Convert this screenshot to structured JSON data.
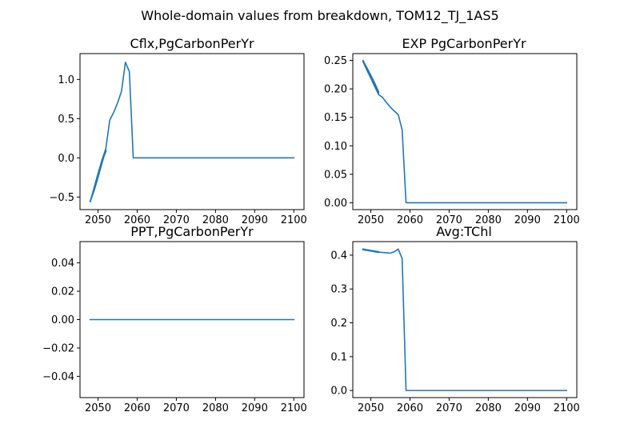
{
  "figure": {
    "suptitle": "Whole-domain values from breakdown, TOM12_TJ_1AS5"
  },
  "style": {
    "series_color": "#1f77b4"
  },
  "chart_data": [
    {
      "type": "line",
      "title": "Cflx,PgCarbonPerYr",
      "xlim": [
        2045.4,
        2102.6
      ],
      "ylim": [
        -0.66,
        1.33
      ],
      "xticks": [
        2050,
        2060,
        2070,
        2080,
        2090,
        2100
      ],
      "xtick_labels": [
        "2050",
        "2060",
        "2070",
        "2080",
        "2090",
        "2100"
      ],
      "yticks": [
        -0.5,
        0.0,
        0.5,
        1.0
      ],
      "ytick_labels": [
        "−0.5",
        "0.0",
        "0.5",
        "1.0"
      ],
      "grid": false,
      "series": [
        {
          "x": [
            2048,
            2049,
            2050,
            2051,
            2052,
            2052,
            2051,
            2050,
            2049,
            2048,
            2049,
            2050,
            2051,
            2052,
            2053,
            2054,
            2055,
            2056,
            2057,
            2058,
            2059,
            2060,
            2070,
            2080,
            2090,
            2100
          ],
          "y": [
            -0.55,
            -0.4,
            -0.22,
            -0.05,
            0.08,
            0.1,
            -0.07,
            -0.25,
            -0.42,
            -0.56,
            -0.38,
            -0.2,
            -0.03,
            0.12,
            0.48,
            0.58,
            0.7,
            0.85,
            1.22,
            1.1,
            0.0,
            0.0,
            0.0,
            0.0,
            0.0,
            0.0
          ]
        }
      ]
    },
    {
      "type": "line",
      "title": "EXP PgCarbonPerYr",
      "xlim": [
        2045.4,
        2102.6
      ],
      "ylim": [
        -0.012,
        0.262
      ],
      "xticks": [
        2050,
        2060,
        2070,
        2080,
        2090,
        2100
      ],
      "xtick_labels": [
        "2050",
        "2060",
        "2070",
        "2080",
        "2090",
        "2100"
      ],
      "yticks": [
        0.0,
        0.05,
        0.1,
        0.15,
        0.2,
        0.25
      ],
      "ytick_labels": [
        "0.00",
        "0.05",
        "0.10",
        "0.15",
        "0.20",
        "0.25"
      ],
      "grid": false,
      "series": [
        {
          "x": [
            2048,
            2049,
            2050,
            2051,
            2052,
            2052,
            2051,
            2050,
            2049,
            2048,
            2049,
            2050,
            2051,
            2052,
            2053,
            2054,
            2055,
            2056,
            2057,
            2058,
            2059,
            2060,
            2070,
            2080,
            2090,
            2100
          ],
          "y": [
            0.25,
            0.237,
            0.224,
            0.21,
            0.195,
            0.19,
            0.205,
            0.22,
            0.234,
            0.248,
            0.233,
            0.219,
            0.204,
            0.19,
            0.185,
            0.176,
            0.168,
            0.161,
            0.155,
            0.128,
            0.0,
            0.0,
            0.0,
            0.0,
            0.0,
            0.0
          ]
        }
      ]
    },
    {
      "type": "line",
      "title": "PPT,PgCarbonPerYr",
      "xlim": [
        2045.4,
        2102.6
      ],
      "ylim": [
        -0.055,
        0.055
      ],
      "xticks": [
        2050,
        2060,
        2070,
        2080,
        2090,
        2100
      ],
      "xtick_labels": [
        "2050",
        "2060",
        "2070",
        "2080",
        "2090",
        "2100"
      ],
      "yticks": [
        -0.04,
        -0.02,
        0.0,
        0.02,
        0.04
      ],
      "ytick_labels": [
        "−0.04",
        "−0.02",
        "0.00",
        "0.02",
        "0.04"
      ],
      "grid": false,
      "series": [
        {
          "x": [
            2048,
            2049,
            2050,
            2051,
            2052,
            2052,
            2051,
            2050,
            2049,
            2048,
            2049,
            2050,
            2051,
            2052,
            2060,
            2070,
            2080,
            2090,
            2100
          ],
          "y": [
            0.0,
            0.0,
            0.0,
            0.0,
            0.0,
            0.0,
            0.0,
            0.0,
            0.0,
            0.0,
            0.0,
            0.0,
            0.0,
            0.0,
            0.0,
            0.0,
            0.0,
            0.0,
            0.0
          ]
        }
      ]
    },
    {
      "type": "line",
      "title": "Avg:TChl",
      "xlim": [
        2045.4,
        2102.6
      ],
      "ylim": [
        -0.021,
        0.44
      ],
      "xticks": [
        2050,
        2060,
        2070,
        2080,
        2090,
        2100
      ],
      "xtick_labels": [
        "2050",
        "2060",
        "2070",
        "2080",
        "2090",
        "2100"
      ],
      "yticks": [
        0.0,
        0.1,
        0.2,
        0.3,
        0.4
      ],
      "ytick_labels": [
        "0.0",
        "0.1",
        "0.2",
        "0.3",
        "0.4"
      ],
      "grid": false,
      "series": [
        {
          "x": [
            2048,
            2049,
            2050,
            2051,
            2052,
            2052,
            2051,
            2050,
            2049,
            2048,
            2049,
            2050,
            2051,
            2052,
            2053,
            2054,
            2055,
            2056,
            2057,
            2058,
            2059,
            2060,
            2070,
            2080,
            2090,
            2100
          ],
          "y": [
            0.418,
            0.416,
            0.414,
            0.412,
            0.41,
            0.408,
            0.41,
            0.412,
            0.414,
            0.416,
            0.414,
            0.412,
            0.41,
            0.409,
            0.408,
            0.407,
            0.406,
            0.41,
            0.418,
            0.39,
            0.0,
            0.0,
            0.0,
            0.0,
            0.0,
            0.0
          ]
        }
      ]
    }
  ]
}
